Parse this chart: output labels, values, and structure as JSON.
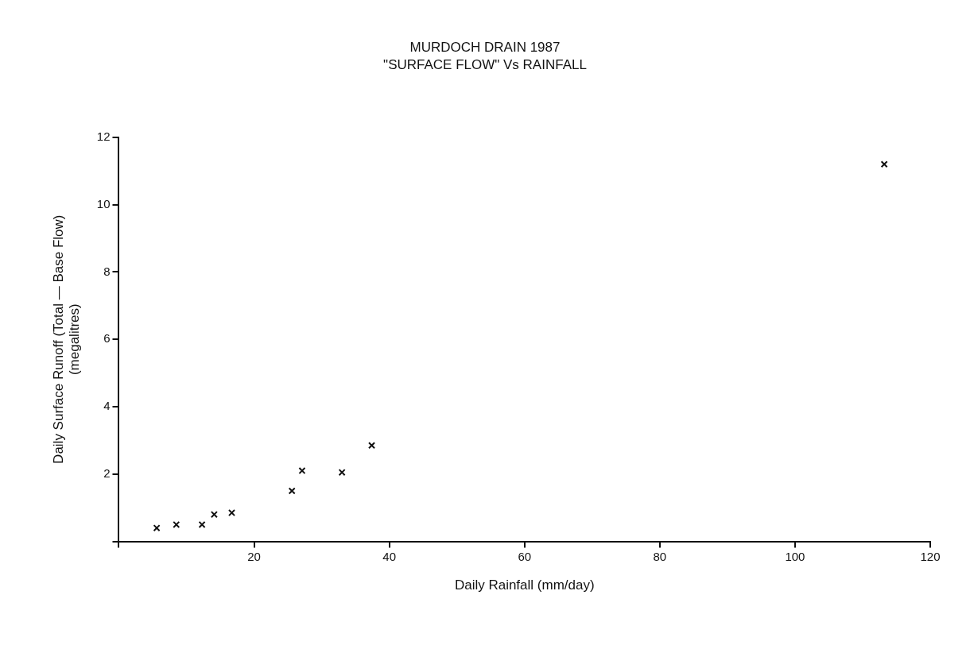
{
  "chart_data": {
    "type": "scatter",
    "title": "MURDOCH DRAIN 1987",
    "subtitle": "\"SURFACE FLOW\" Vs RAINFALL",
    "xlabel": "Daily Rainfall (mm/day)",
    "ylabel": "Daily Surface Runoff (Total — Base Flow)\n(megalitres)",
    "series": [
      {
        "color": "#111111",
        "x": [
          5.6,
          8.5,
          12.3,
          14.1,
          16.7,
          25.6,
          27.1,
          33.0,
          37.4,
          113.2
        ],
        "values": [
          0.4,
          0.5,
          0.5,
          0.8,
          0.85,
          1.5,
          2.1,
          2.05,
          2.85,
          11.2
        ]
      }
    ],
    "xlim": [
      0,
      120
    ],
    "xticks": [
      {
        "value": 0,
        "label": null
      },
      20,
      40,
      60,
      80,
      100,
      120
    ],
    "ylim": [
      0,
      12
    ],
    "yticks": [
      {
        "value": 0,
        "label": null
      },
      2,
      4,
      6,
      8,
      10,
      12
    ],
    "grid": false,
    "legend": false,
    "marker": "cross"
  }
}
